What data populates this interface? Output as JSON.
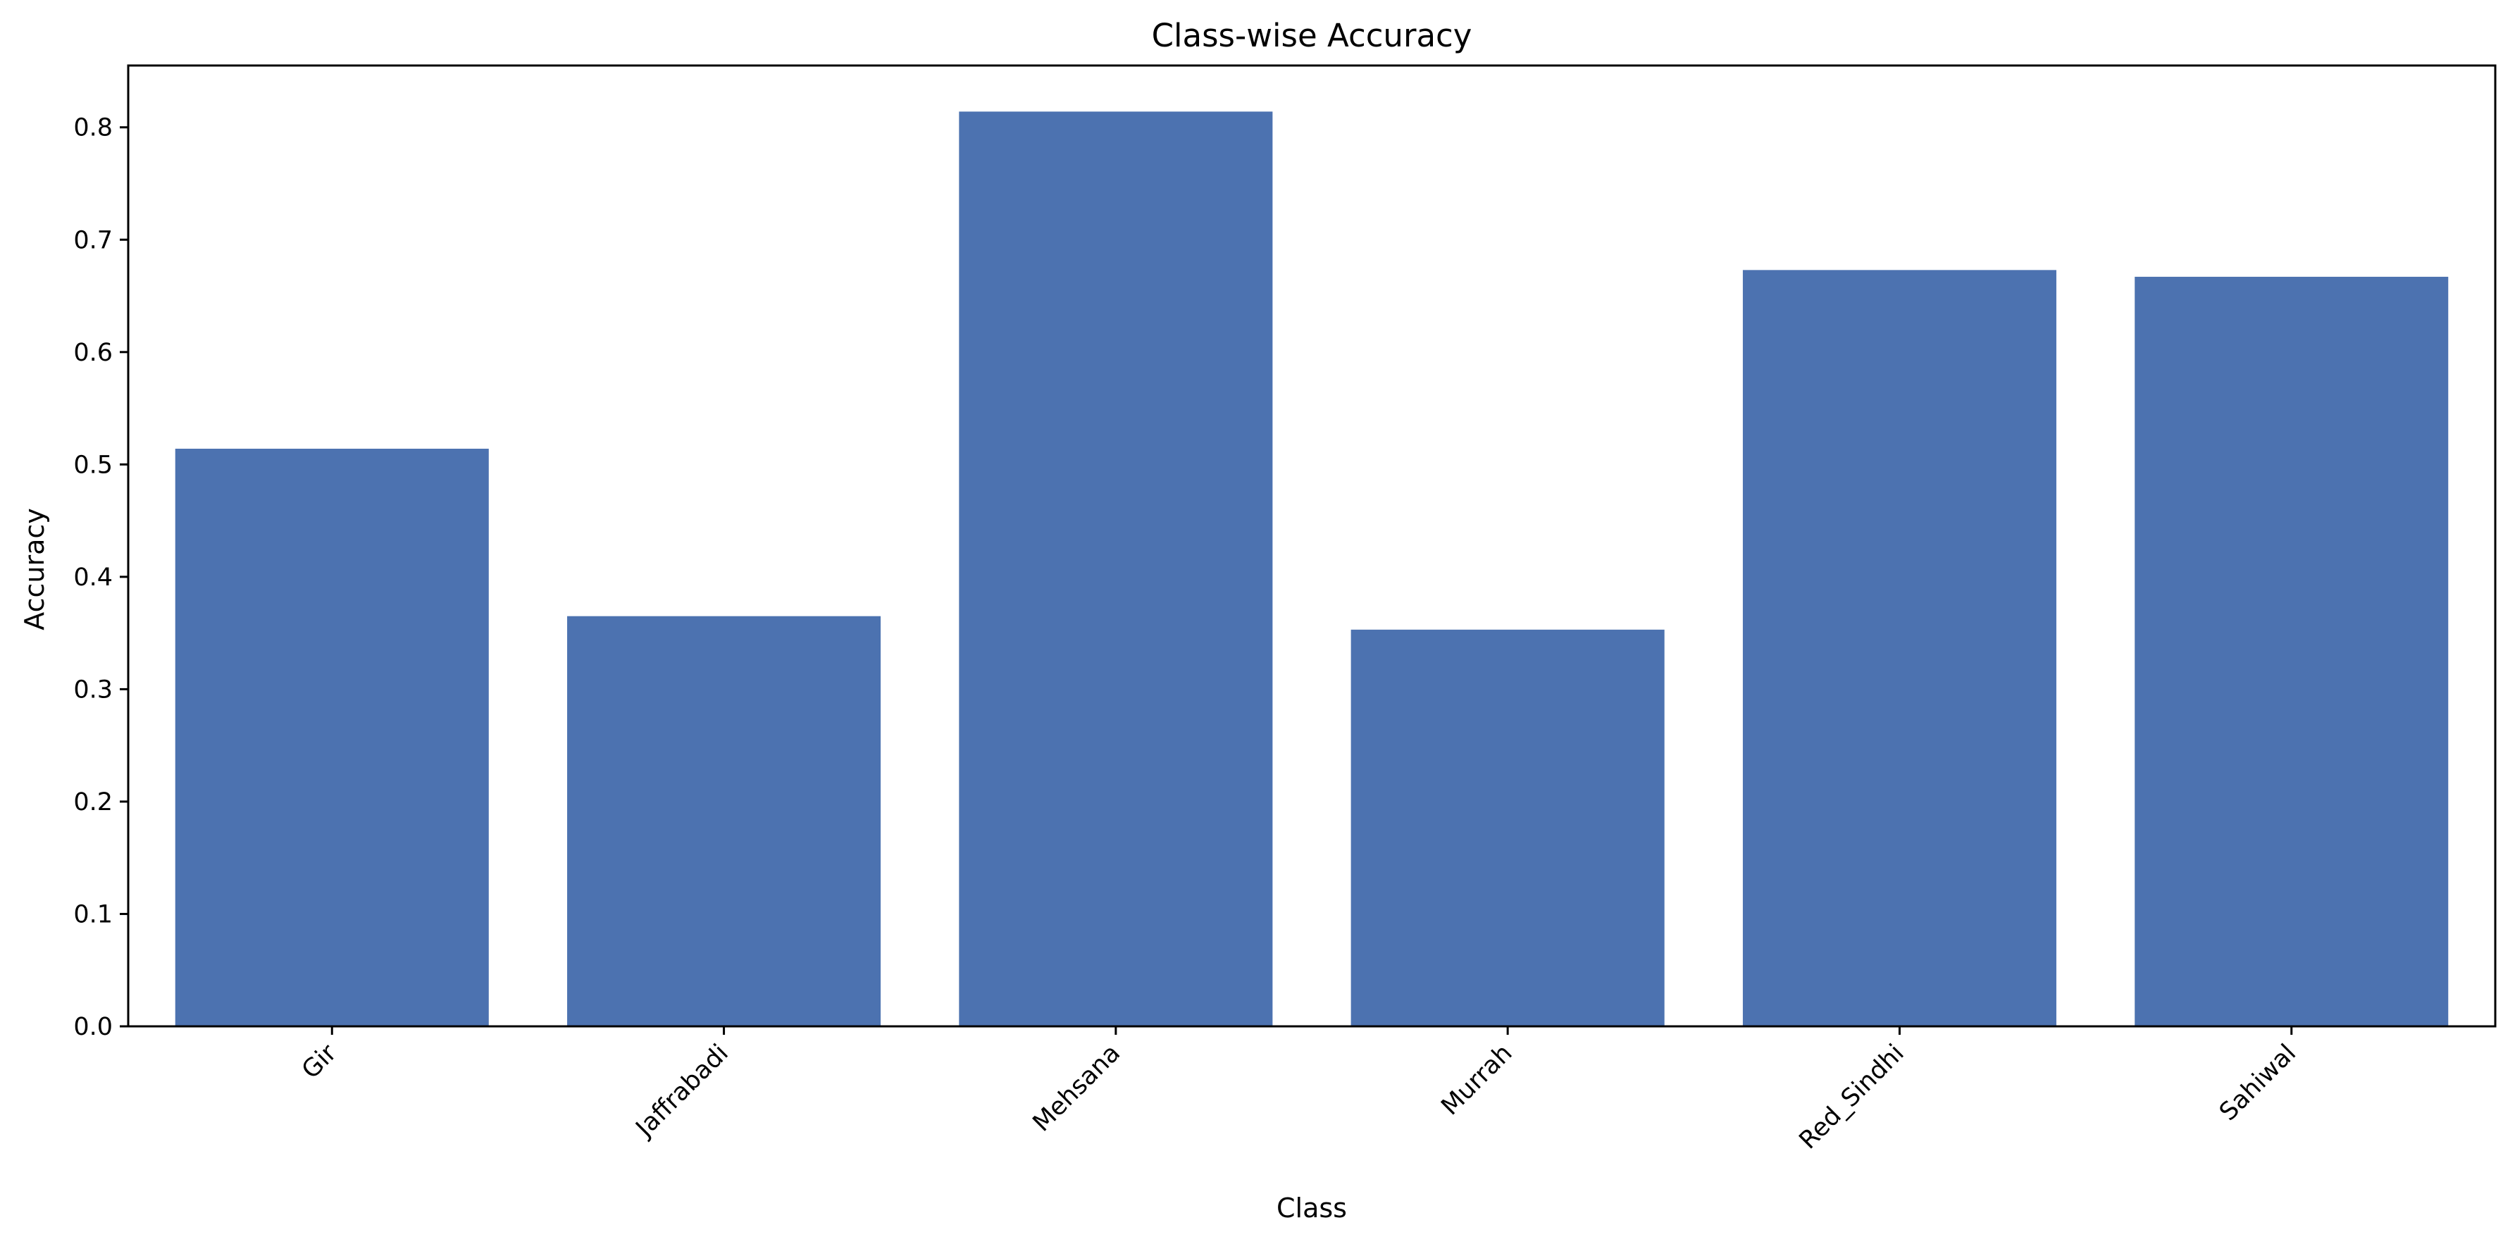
{
  "chart_data": {
    "type": "bar",
    "title": "Class-wise Accuracy",
    "xlabel": "Class",
    "ylabel": "Accuracy",
    "categories": [
      "Gir",
      "Jaffrabadi",
      "Mehsana",
      "Murrah",
      "Red_Sindhi",
      "Sahiwal"
    ],
    "values": [
      0.514,
      0.365,
      0.814,
      0.353,
      0.673,
      0.667
    ],
    "ylim": [
      0,
      0.855
    ],
    "yticks": [
      "0.0",
      "0.1",
      "0.2",
      "0.3",
      "0.4",
      "0.5",
      "0.6",
      "0.7",
      "0.8"
    ],
    "grid": false,
    "legend": "none",
    "colors": {
      "bar": "#4c72b0"
    }
  }
}
